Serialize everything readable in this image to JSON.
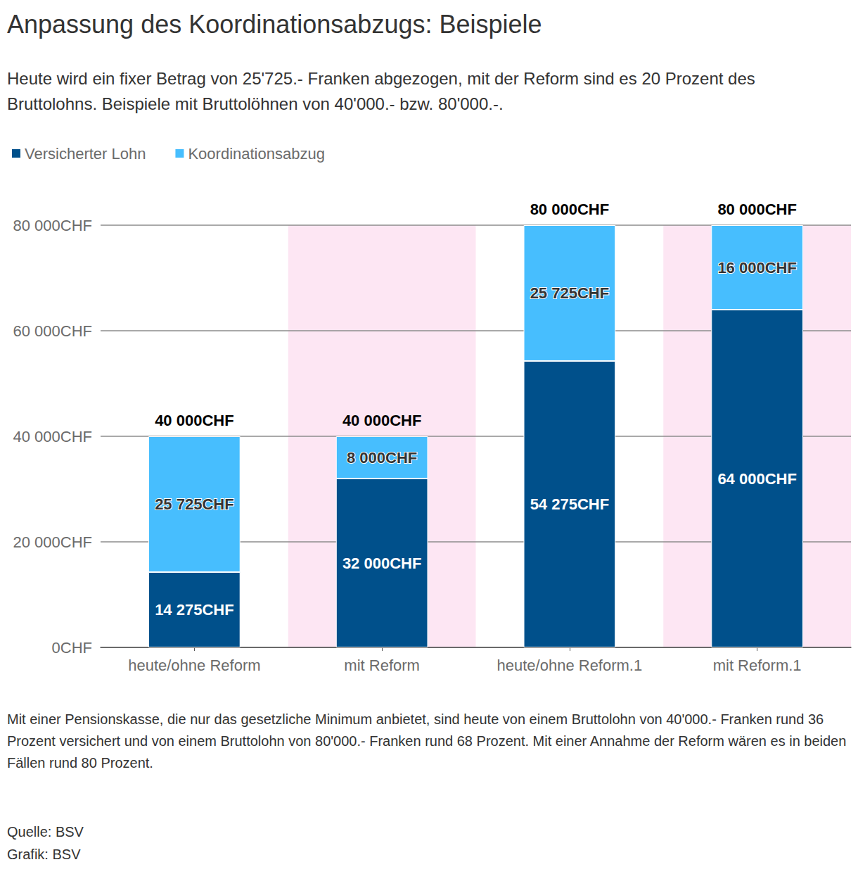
{
  "chart_data": {
    "type": "bar",
    "title": "Anpassung des Koordinationsabzugs: Beispiele",
    "subtitle": "Heute wird ein fixer Betrag von 25'725.- Franken abgezogen, mit der Reform sind es 20 Prozent des Bruttolohns. Beispiele mit Bruttolöhnen von 40'000.- bzw. 80'000.-.",
    "note": "Mit einer Pensionskasse, die nur das gesetzliche Minimum anbietet, sind heute von einem Bruttolohn von 40'000.- Franken rund 36 Prozent versichert und von einem Bruttolohn von 80'000.- Franken rund 68 Prozent. Mit einer Annahme der Reform wären es in beiden Fällen rund 80 Prozent.",
    "source": [
      "Quelle: BSV",
      "Grafik: BSV"
    ],
    "categories": [
      "heute/ohne Reform",
      "mit Reform",
      "heute/ohne Reform.1",
      "mit Reform.1"
    ],
    "series": [
      {
        "name": "Versicherter Lohn",
        "color": "#00508b",
        "values": [
          14275,
          32000,
          54275,
          64000
        ],
        "value_labels": [
          "14 275CHF",
          "32 000CHF",
          "54 275CHF",
          "64 000CHF"
        ]
      },
      {
        "name": "Koordinationsabzug",
        "color": "#47befe",
        "values": [
          25725,
          8000,
          25725,
          16000
        ],
        "value_labels": [
          "25 725CHF",
          "8 000CHF",
          "25 725CHF",
          "16 000CHF"
        ]
      }
    ],
    "total_labels": [
      "40 000CHF",
      "40 000CHF",
      "80 000CHF",
      "80 000CHF"
    ],
    "stacked": true,
    "data_labels": true,
    "legend": "top-left",
    "grid": true,
    "ylim": [
      0,
      80000
    ],
    "yticks": [
      {
        "value": 0,
        "label": "0CHF"
      },
      {
        "value": 20000,
        "label": "20 000CHF"
      },
      {
        "value": 40000,
        "label": "40 000CHF"
      },
      {
        "value": 60000,
        "label": "60 000CHF"
      },
      {
        "value": 80000,
        "label": "80 000CHF"
      }
    ]
  }
}
